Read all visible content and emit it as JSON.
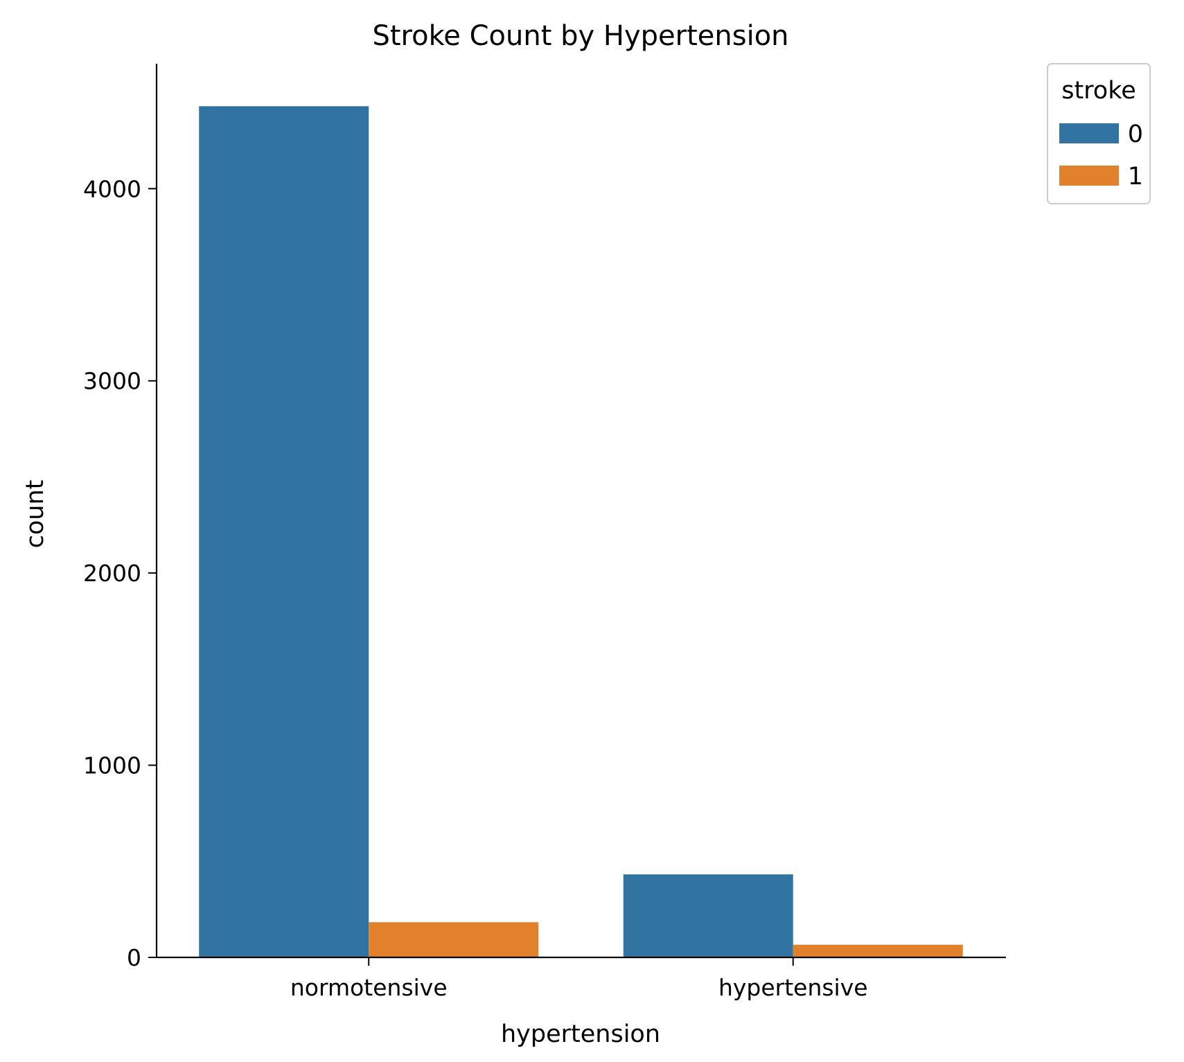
{
  "chart_data": {
    "type": "bar",
    "title": "Stroke Count by Hypertension",
    "xlabel": "hypertension",
    "ylabel": "count",
    "categories": [
      "normotensive",
      "hypertensive"
    ],
    "series": [
      {
        "name": "0",
        "values": [
          4429,
          432
        ],
        "color": "#3274a1"
      },
      {
        "name": "1",
        "values": [
          183,
          66
        ],
        "color": "#e1812c"
      }
    ],
    "ylim": [
      0,
      4650
    ],
    "yticks": [
      0,
      1000,
      2000,
      3000,
      4000
    ],
    "grid": false,
    "legend": {
      "title": "stroke",
      "placement": "top-right outside plot"
    }
  }
}
